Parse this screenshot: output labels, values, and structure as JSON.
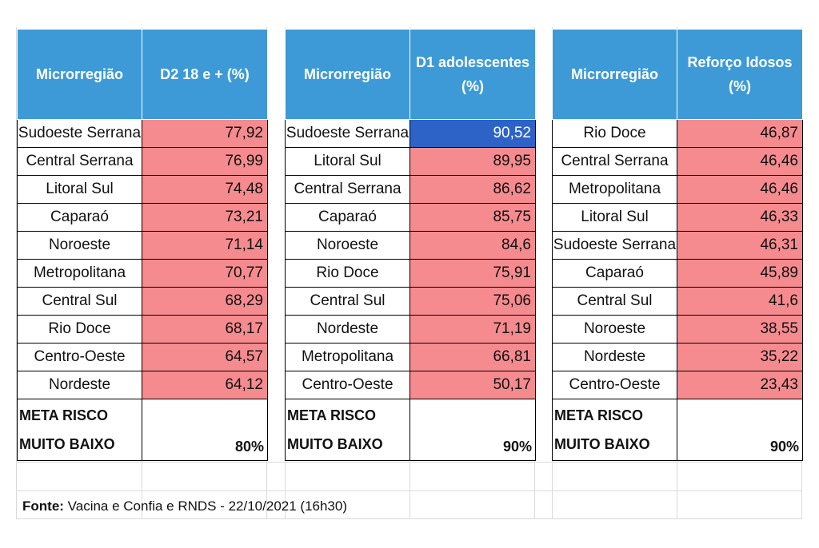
{
  "panels": [
    {
      "header_name": "Microrregião",
      "header_metric": "D2 18 e + (%)",
      "rows": [
        {
          "region": "Sudoeste Serrana",
          "value": "77,92"
        },
        {
          "region": "Central Serrana",
          "value": "76,99"
        },
        {
          "region": "Litoral Sul",
          "value": "74,48"
        },
        {
          "region": "Caparaó",
          "value": "73,21"
        },
        {
          "region": "Noroeste",
          "value": "71,14"
        },
        {
          "region": "Metropolitana",
          "value": "70,77"
        },
        {
          "region": "Central Sul",
          "value": "68,29"
        },
        {
          "region": "Rio Doce",
          "value": "68,17"
        },
        {
          "region": "Centro-Oeste",
          "value": "64,57"
        },
        {
          "region": "Nordeste",
          "value": "64,12"
        }
      ],
      "meta_line1": "META RISCO",
      "meta_line2": "MUITO BAIXO",
      "meta_value": "80%"
    },
    {
      "header_name": "Microrregião",
      "header_metric": "D1 adolescentes (%)",
      "rows": [
        {
          "region": "Sudoeste Serrana",
          "value": "90,52"
        },
        {
          "region": "Litoral Sul",
          "value": "89,95"
        },
        {
          "region": "Central Serrana",
          "value": "86,62"
        },
        {
          "region": "Caparaó",
          "value": "85,75"
        },
        {
          "region": "Noroeste",
          "value": "84,6"
        },
        {
          "region": "Rio Doce",
          "value": "75,91"
        },
        {
          "region": "Central Sul",
          "value": "75,06"
        },
        {
          "region": "Nordeste",
          "value": "71,19"
        },
        {
          "region": "Metropolitana",
          "value": "66,81"
        },
        {
          "region": "Centro-Oeste",
          "value": "50,17"
        }
      ],
      "meta_line1": "META RISCO",
      "meta_line2": "MUITO BAIXO",
      "meta_value": "90%"
    },
    {
      "header_name": "Microrregião",
      "header_metric": "Reforço Idosos (%)",
      "rows": [
        {
          "region": "Rio Doce",
          "value": "46,87"
        },
        {
          "region": "Central Serrana",
          "value": "46,46"
        },
        {
          "region": "Metropolitana",
          "value": "46,46"
        },
        {
          "region": "Litoral Sul",
          "value": "46,33"
        },
        {
          "region": "Sudoeste Serrana",
          "value": "46,31"
        },
        {
          "region": "Caparaó",
          "value": "45,89"
        },
        {
          "region": "Central Sul",
          "value": "41,6"
        },
        {
          "region": "Noroeste",
          "value": "38,55"
        },
        {
          "region": "Nordeste",
          "value": "35,22"
        },
        {
          "region": "Centro-Oeste",
          "value": "23,43"
        }
      ],
      "meta_line1": "META RISCO",
      "meta_line2": "MUITO BAIXO",
      "meta_value": "90%"
    }
  ],
  "colors": {
    "header_bg": "#3d9ad7",
    "below_target": "#f58b8f",
    "above_target": "#2d63c7"
  },
  "source": {
    "label": "Fonte:",
    "text": " Vacina e Confia e RNDS - 22/10/2021 (16h30)"
  }
}
